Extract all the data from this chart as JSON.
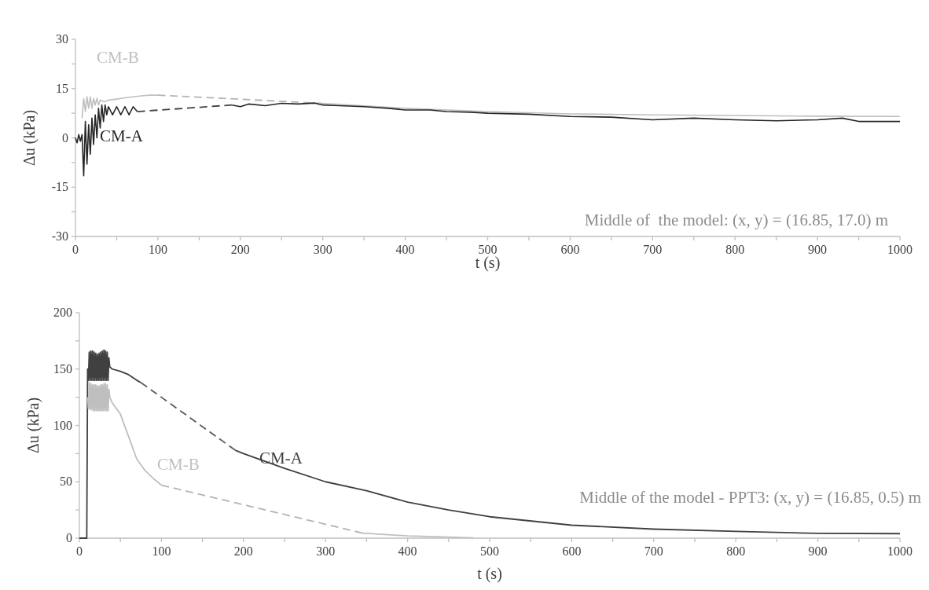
{
  "chart_data": [
    {
      "type": "line",
      "xlabel": "t (s)",
      "ylabel": "Δu (kPa)",
      "xlim": [
        0,
        1000
      ],
      "ylim": [
        -30,
        30
      ],
      "xticks": [
        0,
        {
          "value": 50,
          "label": null
        },
        100,
        {
          "value": 150,
          "label": null
        },
        200,
        {
          "value": 250,
          "label": null
        },
        300,
        {
          "value": 350,
          "label": null
        },
        400,
        {
          "value": 450,
          "label": null
        },
        500,
        {
          "value": 550,
          "label": null
        },
        600,
        {
          "value": 650,
          "label": null
        },
        700,
        {
          "value": 750,
          "label": null
        },
        800,
        {
          "value": 850,
          "label": null
        },
        900,
        {
          "value": 950,
          "label": null
        },
        1000
      ],
      "yticks": [
        -30,
        {
          "value": -22.5,
          "label": null
        },
        -15,
        {
          "value": -7.5,
          "label": null
        },
        0,
        {
          "value": 7.5,
          "label": null
        },
        15,
        {
          "value": 22.5,
          "label": null
        },
        30
      ],
      "annotations": [
        "Middle of  the model: (x, y) = (16.85, 17.0) m"
      ],
      "series": [
        {
          "name": "CM-B",
          "color": "#bfbfbf",
          "line_style": "solid",
          "x": [
            8,
            10,
            12,
            14,
            16,
            18,
            20,
            22,
            24,
            26,
            28,
            30,
            35,
            40,
            50,
            60,
            70,
            80,
            90,
            100,
            200,
            300,
            400,
            500,
            600,
            700,
            800,
            900,
            1000
          ],
          "values": [
            6,
            12,
            8,
            12.5,
            9,
            12.5,
            9,
            12,
            10,
            12,
            10,
            11.5,
            11,
            11.5,
            11.8,
            12.2,
            12.5,
            12.8,
            13,
            13,
            null,
            10.5,
            9,
            8,
            7.3,
            7,
            6.8,
            6.6,
            6.5
          ]
        },
        {
          "color": "#b3b3b3",
          "line_style": "dashed",
          "x": [
            100,
            300
          ],
          "values": [
            13,
            10.5
          ]
        },
        {
          "name": "CM-A",
          "color": "#262626",
          "line_style": "solid",
          "x": [
            0,
            2,
            4,
            6,
            8,
            10,
            12,
            14,
            16,
            18,
            20,
            22,
            24,
            26,
            28,
            30,
            32,
            34,
            36,
            38,
            40,
            45,
            50,
            55,
            60,
            65,
            70,
            75,
            100,
            190,
            200,
            210,
            230,
            250,
            270,
            290,
            300,
            320,
            350,
            380,
            400,
            430,
            450,
            480,
            500,
            550,
            600,
            650,
            700,
            750,
            800,
            850,
            900,
            930,
            950,
            1000
          ],
          "values": [
            0,
            -1.5,
            1,
            -1,
            1,
            -11.5,
            5,
            -8,
            4,
            -5,
            6,
            -2,
            7,
            0,
            9,
            3,
            10,
            5,
            10,
            7,
            9.5,
            7,
            9.5,
            7,
            9.5,
            7,
            9.5,
            8,
            null,
            10,
            9.5,
            10.3,
            9.8,
            10.5,
            10.3,
            10.6,
            10,
            9.8,
            9.5,
            9,
            8.5,
            8.5,
            8,
            7.8,
            7.5,
            7.2,
            6.5,
            6.3,
            5.5,
            6,
            5.5,
            5.2,
            5.5,
            6,
            5,
            5
          ]
        },
        {
          "color": "#404040",
          "line_style": "dashed",
          "x": [
            75,
            190
          ],
          "values": [
            8,
            10
          ]
        }
      ]
    },
    {
      "type": "line",
      "xlabel": "t (s)",
      "ylabel": "Δu (kPa)",
      "xlim": [
        0,
        1000
      ],
      "ylim": [
        0,
        200
      ],
      "xticks": [
        0,
        {
          "value": 50,
          "label": null
        },
        100,
        {
          "value": 150,
          "label": null
        },
        200,
        {
          "value": 250,
          "label": null
        },
        300,
        {
          "value": 350,
          "label": null
        },
        400,
        {
          "value": 450,
          "label": null
        },
        500,
        {
          "value": 550,
          "label": null
        },
        600,
        {
          "value": 650,
          "label": null
        },
        700,
        {
          "value": 750,
          "label": null
        },
        800,
        {
          "value": 850,
          "label": null
        },
        900,
        {
          "value": 950,
          "label": null
        },
        1000
      ],
      "yticks": [
        0,
        {
          "value": 25,
          "label": null
        },
        50,
        {
          "value": 75,
          "label": null
        },
        100,
        {
          "value": 125,
          "label": null
        },
        150,
        {
          "value": 175,
          "label": null
        },
        200
      ],
      "annotations": [
        "Middle of the model - PPT3: (x, y) = (16.85, 0.5) m"
      ],
      "series": [
        {
          "name": "CM-A",
          "color": "#404040",
          "line_style": "solid",
          "x": [
            0,
            9,
            10,
            11,
            12,
            13,
            14,
            15,
            16,
            17,
            18,
            19,
            20,
            21,
            22,
            23,
            24,
            25,
            26,
            27,
            28,
            29,
            30,
            31,
            32,
            33,
            34,
            35,
            36,
            37,
            40,
            50,
            60,
            70,
            75,
            100,
            190,
            200,
            250,
            300,
            350,
            400,
            450,
            500,
            600,
            700,
            800,
            900,
            1000
          ],
          "values": [
            0,
            0,
            150,
            140,
            165,
            140,
            166,
            140,
            166,
            140,
            165,
            140,
            164,
            140,
            163,
            140,
            164,
            140,
            165,
            140,
            166,
            140,
            167,
            140,
            166,
            140,
            165,
            140,
            160,
            152,
            150,
            148,
            145,
            140,
            138,
            null,
            78,
            75,
            62,
            50,
            42,
            32,
            25,
            19,
            11.5,
            8,
            6,
            4.2,
            4
          ]
        },
        {
          "color": "#595959",
          "line_style": "dashed",
          "x": [
            75,
            190
          ],
          "values": [
            138,
            78
          ]
        },
        {
          "name": "CM-B",
          "color": "#bfbfbf",
          "line_style": "solid",
          "x": [
            10,
            11,
            12,
            13,
            14,
            15,
            16,
            17,
            18,
            19,
            20,
            21,
            22,
            23,
            24,
            25,
            26,
            27,
            28,
            29,
            30,
            31,
            32,
            33,
            34,
            35,
            36,
            37,
            40,
            50,
            60,
            70,
            80,
            90,
            100,
            200,
            345,
            400,
            450,
            480
          ],
          "values": [
            125,
            115,
            138,
            114,
            137,
            114,
            136,
            113,
            136,
            113,
            136,
            113,
            135,
            113,
            135,
            113,
            136,
            113,
            136,
            113,
            137,
            113,
            137,
            113,
            136,
            113,
            132,
            125,
            120,
            110,
            90,
            70,
            60,
            53,
            47,
            null,
            4.5,
            2,
            1,
            0.3
          ]
        },
        {
          "color": "#b3b3b3",
          "line_style": "dashed",
          "x": [
            100,
            345
          ],
          "values": [
            47,
            4.5
          ]
        }
      ]
    }
  ]
}
